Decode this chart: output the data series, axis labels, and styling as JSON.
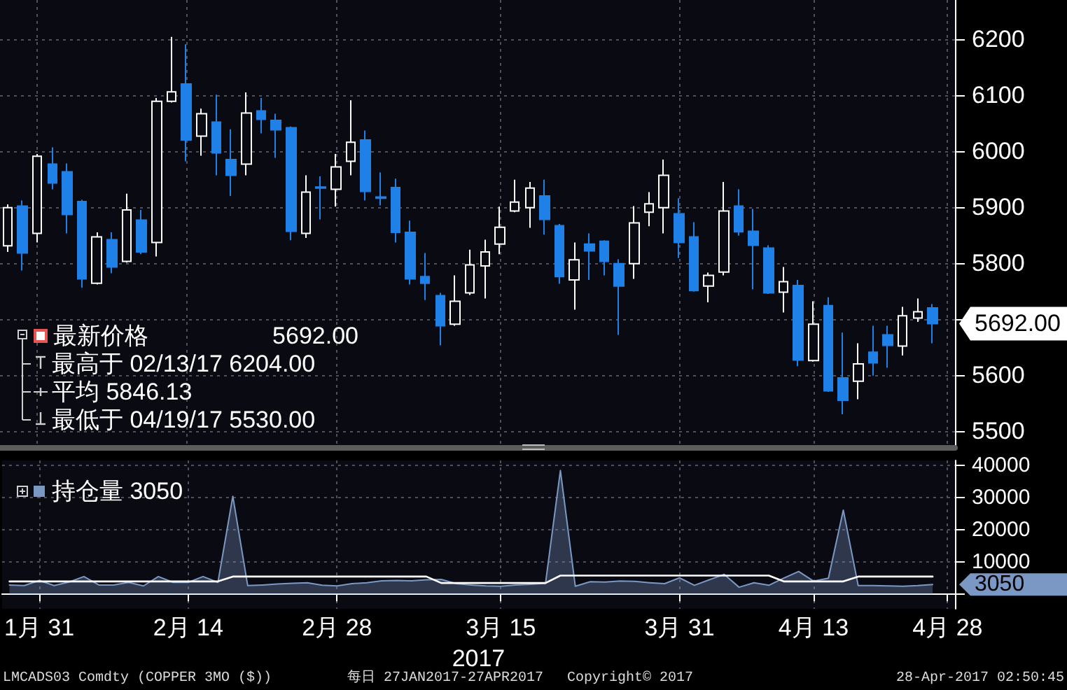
{
  "chart_data": [
    {
      "type": "candlestick",
      "tick_labels": "y",
      "grid": true,
      "legend": "bottom left",
      "categories": [
        null,
        null,
        null,
        null,
        null,
        null,
        null,
        null,
        null,
        null,
        null,
        null,
        null,
        null,
        null,
        null,
        null,
        null,
        null,
        null,
        null,
        null,
        null,
        null,
        null,
        null,
        null,
        null,
        null,
        null,
        null,
        null,
        null,
        null,
        null,
        null,
        null,
        null,
        null,
        null,
        null,
        null,
        null,
        null,
        null,
        null,
        null,
        null,
        null,
        null,
        null,
        null,
        null,
        null,
        null,
        null,
        null,
        null,
        null,
        null,
        null,
        null,
        null,
        null
      ],
      "series": [
        {
          "name": "最新价格",
          "color": "#ffffff",
          "colors": [
            "#ffffff",
            "#1f80e8",
            "#ffffff",
            "#1f80e8",
            "#1f80e8",
            "#1f80e8",
            "#ffffff",
            "#1f80e8",
            "#ffffff",
            "#1f80e8",
            "#ffffff",
            "#ffffff",
            "#1f80e8",
            "#ffffff",
            "#1f80e8",
            "#1f80e8",
            "#ffffff",
            "#1f80e8",
            "#1f80e8",
            "#1f80e8",
            "#ffffff",
            "#1f80e8",
            "#ffffff",
            "#ffffff",
            "#1f80e8",
            "#1f80e8",
            "#1f80e8",
            "#1f80e8",
            "#1f80e8",
            "#1f80e8",
            "#ffffff",
            "#ffffff",
            "#ffffff",
            "#ffffff",
            "#ffffff",
            "#ffffff",
            "#1f80e8",
            "#1f80e8",
            "#ffffff",
            "#1f80e8",
            "#1f80e8",
            "#1f80e8",
            "#ffffff",
            "#ffffff",
            "#ffffff",
            "#1f80e8",
            "#1f80e8",
            "#ffffff",
            "#ffffff",
            "#1f80e8",
            "#1f80e8",
            "#1f80e8",
            "#ffffff",
            "#1f80e8",
            "#ffffff",
            "#1f80e8",
            "#1f80e8",
            "#ffffff",
            "#1f80e8",
            "#1f80e8",
            "#ffffff",
            "#ffffff",
            "#1f80e8",
            null
          ],
          "ohlc": [
            [
              5831,
              5905,
              5820,
              5899
            ],
            [
              5902,
              5912,
              5787,
              5818
            ],
            [
              5853,
              5995,
              5837,
              5991
            ],
            [
              5977,
              6007,
              5932,
              5943
            ],
            [
              5963,
              5978,
              5853,
              5887
            ],
            [
              5910,
              5913,
              5756,
              5772
            ],
            [
              5764,
              5855,
              5762,
              5847
            ],
            [
              5842,
              5855,
              5782,
              5793
            ],
            [
              5803,
              5924,
              5801,
              5895
            ],
            [
              5877,
              5895,
              5816,
              5820
            ],
            [
              5837,
              6095,
              5812,
              6089
            ],
            [
              6089,
              6204,
              6087,
              6106
            ],
            [
              6120,
              6191,
              5982,
              6020
            ],
            [
              6027,
              6076,
              5992,
              6067
            ],
            [
              6052,
              6101,
              5957,
              5997
            ],
            [
              5985,
              6039,
              5920,
              5957
            ],
            [
              5977,
              6105,
              5957,
              6068
            ],
            [
              6072,
              6095,
              6032,
              6057
            ],
            [
              6055,
              6067,
              5988,
              6038
            ],
            [
              6042,
              6044,
              5841,
              5857
            ],
            [
              5853,
              5957,
              5845,
              5927
            ],
            [
              5936,
              5955,
              5878,
              5934
            ],
            [
              5932,
              5995,
              5901,
              5972
            ],
            [
              5982,
              6091,
              5957,
              6016
            ],
            [
              6020,
              6037,
              5912,
              5928
            ],
            [
              5918,
              5962,
              5903,
              5916
            ],
            [
              5935,
              5951,
              5837,
              5855
            ],
            [
              5855,
              5876,
              5762,
              5772
            ],
            [
              5776,
              5818,
              5734,
              5764
            ],
            [
              5742,
              5747,
              5653,
              5688
            ],
            [
              5691,
              5778,
              5688,
              5732
            ],
            [
              5747,
              5824,
              5743,
              5797
            ],
            [
              5795,
              5842,
              5737,
              5820
            ],
            [
              5834,
              5901,
              5816,
              5864
            ],
            [
              5893,
              5949,
              5891,
              5909
            ],
            [
              5899,
              5945,
              5863,
              5934
            ],
            [
              5920,
              5949,
              5851,
              5878
            ],
            [
              5867,
              5870,
              5763,
              5776
            ],
            [
              5770,
              5837,
              5717,
              5806
            ],
            [
              5834,
              5853,
              5770,
              5822
            ],
            [
              5839,
              5841,
              5778,
              5803
            ],
            [
              5799,
              5807,
              5672,
              5759
            ],
            [
              5799,
              5902,
              5772,
              5872
            ],
            [
              5891,
              5927,
              5866,
              5906
            ],
            [
              5899,
              5985,
              5853,
              5957
            ],
            [
              5888,
              5916,
              5809,
              5837
            ],
            [
              5847,
              5873,
              5749,
              5751
            ],
            [
              5759,
              5783,
              5730,
              5778
            ],
            [
              5784,
              5945,
              5778,
              5893
            ],
            [
              5902,
              5932,
              5849,
              5856
            ],
            [
              5857,
              5897,
              5753,
              5832
            ],
            [
              5827,
              5832,
              5745,
              5747
            ],
            [
              5748,
              5793,
              5712,
              5767
            ],
            [
              5760,
              5770,
              5616,
              5627
            ],
            [
              5626,
              5732,
              5624,
              5691
            ],
            [
              5724,
              5739,
              5570,
              5572
            ],
            [
              5595,
              5676,
              5530,
              5555
            ],
            [
              5589,
              5657,
              5557,
              5620
            ],
            [
              5641,
              5688,
              5599,
              5622
            ],
            [
              5672,
              5688,
              5613,
              5653
            ],
            [
              5652,
              5722,
              5635,
              5706
            ],
            [
              5702,
              5737,
              5695,
              5713
            ],
            [
              5720,
              5727,
              5657,
              5692
            ],
            null
          ]
        }
      ],
      "ylim": [
        5470,
        6270
      ],
      "yticks": [
        5500,
        5600,
        {
          "value": 5700,
          "label": null
        },
        5800,
        5900,
        6000,
        6100,
        6200
      ],
      "annotations": [
        "5692.00",
        "最高于 02/13/17 6204.00",
        "平均 5846.13",
        "最低于 04/19/17 5530.00",
        "5692.00"
      ]
    },
    {
      "type": "area",
      "grid": true,
      "legend": "top left",
      "xlabel": "2017",
      "categories": [
        null,
        null,
        "1月 31",
        null,
        null,
        null,
        null,
        null,
        null,
        null,
        null,
        null,
        "2月 14",
        null,
        null,
        null,
        null,
        null,
        null,
        null,
        null,
        null,
        "2月 28",
        null,
        null,
        null,
        null,
        null,
        null,
        null,
        null,
        null,
        null,
        "3月 15",
        null,
        null,
        null,
        null,
        null,
        null,
        null,
        null,
        null,
        null,
        null,
        "3月 31",
        null,
        null,
        null,
        null,
        null,
        null,
        null,
        null,
        "4月 13",
        null,
        null,
        null,
        null,
        null,
        null,
        null,
        null,
        "4月 28"
      ],
      "series": [
        {
          "name": "持仓量",
          "color": "#7b98c4",
          "values": [
            2900,
            2700,
            4300,
            2700,
            3800,
            5500,
            2900,
            2900,
            3700,
            2600,
            5500,
            3700,
            3700,
            5500,
            3700,
            30400,
            2700,
            2900,
            3200,
            3400,
            3600,
            2800,
            2600,
            3300,
            3600,
            4200,
            4300,
            4200,
            4500,
            4600,
            3300,
            2900,
            2600,
            2500,
            2900,
            3100,
            3400,
            38400,
            2500,
            3900,
            3800,
            4100,
            4000,
            3600,
            3300,
            5100,
            2800,
            4500,
            6200,
            2200,
            3600,
            2800,
            5000,
            7100,
            4100,
            5000,
            26100,
            2700,
            2700,
            2600,
            2500,
            2700,
            3050,
            null
          ]
        },
        {
          "type": "line",
          "color": "#ffffff",
          "values": [
            4000,
            4000,
            4000,
            4000,
            4000,
            4000,
            4000,
            4000,
            4000,
            4000,
            4000,
            4000,
            4000,
            4000,
            4000,
            5500,
            5500,
            5500,
            5500,
            5500,
            5500,
            5500,
            5500,
            5500,
            5500,
            5500,
            5500,
            5500,
            5500,
            3500,
            3500,
            3500,
            3500,
            3500,
            3500,
            3500,
            3500,
            5800,
            5800,
            5800,
            5800,
            5800,
            5800,
            5800,
            5800,
            5800,
            5800,
            5800,
            5800,
            5800,
            5800,
            5800,
            4000,
            4000,
            4000,
            4000,
            4000,
            5500,
            5500,
            5500,
            5500,
            5500,
            5500,
            null
          ]
        }
      ],
      "ylim": [
        -4500,
        41500
      ],
      "yticks": [
        {
          "value": 0,
          "label": null
        },
        10000,
        20000,
        30000,
        40000
      ],
      "annotations": [
        "3050",
        "3050",
        "LMCADS03 Comdty (COPPER 3MO ($))",
        "每日 27JAN2017-27APR2017",
        "Copyright© 2017",
        "28-Apr-2017 02:50:45"
      ]
    }
  ]
}
